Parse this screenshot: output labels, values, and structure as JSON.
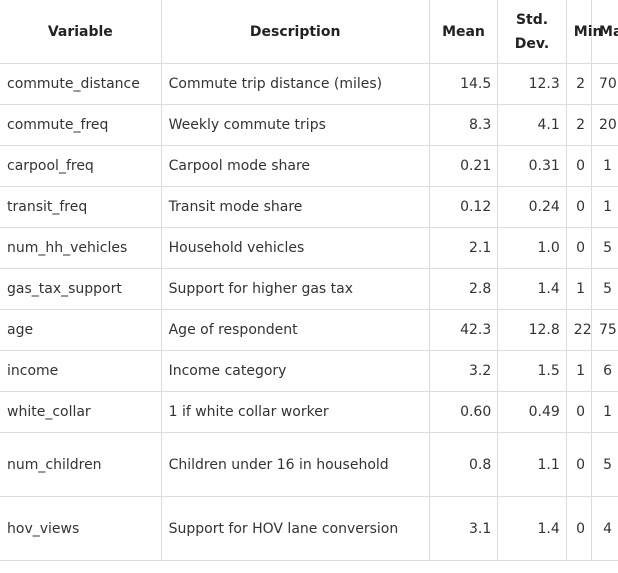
{
  "table": {
    "headers": [
      "Variable",
      "Description",
      "Mean",
      "Std. Dev.",
      "Min",
      "Max"
    ],
    "rows": [
      [
        "commute_distance",
        "Commute trip distance (miles)",
        "14.5",
        "12.3",
        "2",
        "70"
      ],
      [
        "commute_freq",
        "Weekly commute trips",
        "8.3",
        "4.1",
        "2",
        "20"
      ],
      [
        "carpool_freq",
        "Carpool mode share",
        "0.21",
        "0.31",
        "0",
        "1"
      ],
      [
        "transit_freq",
        "Transit mode share",
        "0.12",
        "0.24",
        "0",
        "1"
      ],
      [
        "num_hh_vehicles",
        "Household vehicles",
        "2.1",
        "1.0",
        "0",
        "5"
      ],
      [
        "gas_tax_support",
        "Support for higher gas tax",
        "2.8",
        "1.4",
        "1",
        "5"
      ],
      [
        "age",
        "Age of respondent",
        "42.3",
        "12.8",
        "22",
        "75"
      ],
      [
        "income",
        "Income category",
        "3.2",
        "1.5",
        "1",
        "6"
      ],
      [
        "white_collar",
        "1 if white collar worker",
        "0.60",
        "0.49",
        "0",
        "1"
      ],
      [
        "num_children",
        "Children under 16 in household",
        "0.8",
        "1.1",
        "0",
        "5"
      ],
      [
        "hov_views",
        "Support for HOV lane conversion",
        "3.1",
        "1.4",
        "0",
        "4"
      ]
    ]
  }
}
